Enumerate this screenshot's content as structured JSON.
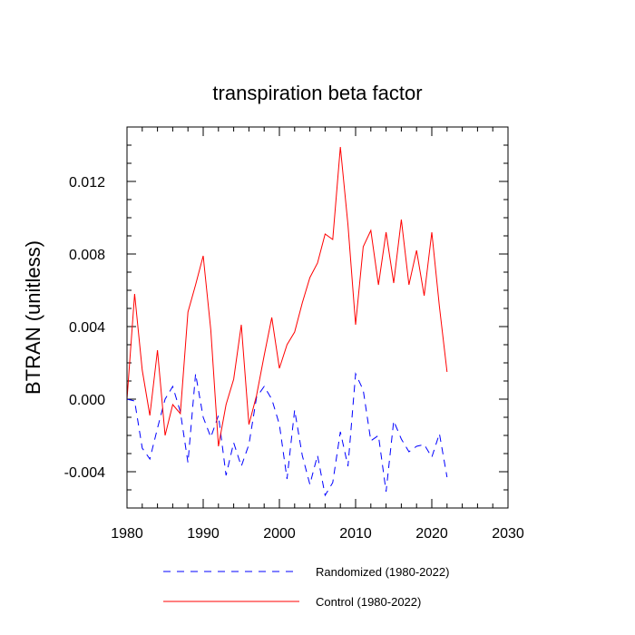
{
  "chart_data": {
    "type": "line",
    "title": "transpiration beta factor",
    "xlabel": "",
    "ylabel": "BTRAN  (unitless)",
    "xlim": [
      1980,
      2030
    ],
    "ylim": [
      -0.006,
      0.015
    ],
    "xticks": [
      1980,
      1990,
      2000,
      2010,
      2020,
      2030
    ],
    "xtick_labels": [
      "1980",
      "1990",
      "2000",
      "2010",
      "2020",
      "2030"
    ],
    "yticks": [
      -0.004,
      0.0,
      0.004,
      0.008,
      0.012
    ],
    "ytick_labels": [
      "-0.004",
      "0.000",
      "0.004",
      "0.008",
      "0.012"
    ],
    "x": [
      1980,
      1981,
      1982,
      1983,
      1984,
      1985,
      1986,
      1987,
      1988,
      1989,
      1990,
      1991,
      1992,
      1993,
      1994,
      1995,
      1996,
      1997,
      1998,
      1999,
      2000,
      2001,
      2002,
      2003,
      2004,
      2005,
      2006,
      2007,
      2008,
      2009,
      2010,
      2011,
      2012,
      2013,
      2014,
      2015,
      2016,
      2017,
      2018,
      2019,
      2020,
      2021,
      2022
    ],
    "series": [
      {
        "name": "Randomized (1980-2022)",
        "color": "#0000ff",
        "style": "dashed",
        "values": [
          0.0,
          -0.0001,
          -0.0027,
          -0.0033,
          -0.0016,
          0.0,
          0.0007,
          -0.0007,
          -0.0035,
          0.0014,
          -0.001,
          -0.0021,
          -0.0009,
          -0.0042,
          -0.0024,
          -0.0037,
          -0.0025,
          0.0001,
          0.0007,
          0.0,
          -0.0014,
          -0.0044,
          -0.0006,
          -0.0031,
          -0.0047,
          -0.0031,
          -0.0053,
          -0.0046,
          -0.0018,
          -0.0037,
          0.0014,
          0.0005,
          -0.0023,
          -0.002,
          -0.0051,
          -0.0012,
          -0.0022,
          -0.0029,
          -0.0026,
          -0.0025,
          -0.0032,
          -0.0019,
          -0.0043
        ]
      },
      {
        "name": "Control (1980-2022)",
        "color": "#ff0000",
        "style": "solid",
        "values": [
          0.0,
          0.0058,
          0.0016,
          -0.0009,
          0.0027,
          -0.002,
          -0.0003,
          -0.0008,
          0.0048,
          0.0063,
          0.0079,
          0.0038,
          -0.0026,
          -0.0003,
          0.0011,
          0.0041,
          -0.0014,
          0.0002,
          0.0024,
          0.0045,
          0.0017,
          0.003,
          0.0037,
          0.0053,
          0.0067,
          0.0075,
          0.0091,
          0.0088,
          0.0139,
          0.0096,
          0.0041,
          0.0084,
          0.0093,
          0.0063,
          0.0092,
          0.0064,
          0.0099,
          0.0063,
          0.0082,
          0.0057,
          0.0092,
          0.0051,
          0.0015
        ]
      }
    ],
    "legend_position": "bottom"
  }
}
